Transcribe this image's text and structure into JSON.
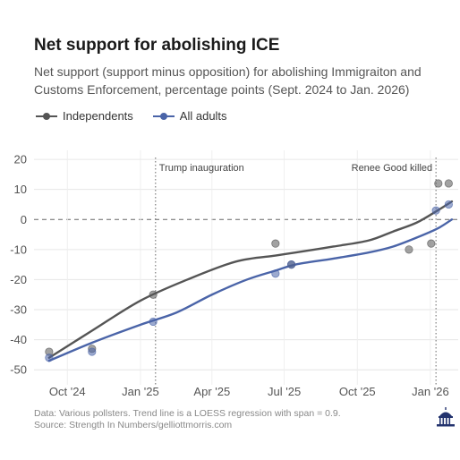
{
  "header": {
    "title": "Net support for abolishing ICE",
    "subtitle": "Net support (support minus opposition) for abolishing Immigraiton and Customs Enforcement, percentage points (Sept. 2024 to Jan. 2026)"
  },
  "footer": {
    "line1": "Data: Various pollsters. Trend line is a LOESS regression with span = 0.9.",
    "line2": "Source: Strength In Numbers/gelliottmorris.com"
  },
  "logo": {
    "icon": "capitol-dome-icon"
  },
  "chart_data": {
    "type": "scatter",
    "title": "Net support for abolishing ICE",
    "xlabel": "",
    "ylabel": "",
    "xlim": [
      "2024-08-20",
      "2026-02-05"
    ],
    "ylim": [
      -55,
      23
    ],
    "yticks": [
      20,
      10,
      0,
      -10,
      -20,
      -30,
      -40,
      -50
    ],
    "xticks": [
      {
        "date": "2024-10-01",
        "label": "Oct '24"
      },
      {
        "date": "2025-01-01",
        "label": "Jan '25"
      },
      {
        "date": "2025-04-01",
        "label": "Apr '25"
      },
      {
        "date": "2025-07-01",
        "label": "Jul '25"
      },
      {
        "date": "2025-10-01",
        "label": "Oct '25"
      },
      {
        "date": "2026-01-01",
        "label": "Jan '26"
      }
    ],
    "grid": true,
    "legend_position": "top-left",
    "annotations": [
      {
        "date": "2025-01-20",
        "label": "Trump inauguration"
      },
      {
        "date": "2026-01-08",
        "label": "Renee Good killed"
      }
    ],
    "series": [
      {
        "name": "Independents",
        "color": "#555555",
        "points": [
          {
            "x": "2024-09-08",
            "y": -44
          },
          {
            "x": "2024-11-01",
            "y": -43
          },
          {
            "x": "2025-01-17",
            "y": -25
          },
          {
            "x": "2025-06-20",
            "y": -8
          },
          {
            "x": "2025-07-10",
            "y": -15
          },
          {
            "x": "2025-12-05",
            "y": -10
          },
          {
            "x": "2026-01-02",
            "y": -8
          },
          {
            "x": "2026-01-11",
            "y": 12
          },
          {
            "x": "2026-01-24",
            "y": 12
          }
        ],
        "trend": [
          {
            "x": "2024-09-08",
            "y": -46
          },
          {
            "x": "2024-11-01",
            "y": -37
          },
          {
            "x": "2025-01-01",
            "y": -27
          },
          {
            "x": "2025-03-01",
            "y": -20
          },
          {
            "x": "2025-05-01",
            "y": -14
          },
          {
            "x": "2025-06-20",
            "y": -12
          },
          {
            "x": "2025-07-15",
            "y": -11
          },
          {
            "x": "2025-09-01",
            "y": -9
          },
          {
            "x": "2025-10-15",
            "y": -7
          },
          {
            "x": "2025-11-15",
            "y": -4
          },
          {
            "x": "2025-12-15",
            "y": -1
          },
          {
            "x": "2026-01-10",
            "y": 3
          },
          {
            "x": "2026-01-28",
            "y": 6
          }
        ]
      },
      {
        "name": "All adults",
        "color": "#4a64a8",
        "points": [
          {
            "x": "2024-09-08",
            "y": -46
          },
          {
            "x": "2024-11-01",
            "y": -44
          },
          {
            "x": "2025-01-17",
            "y": -34
          },
          {
            "x": "2025-06-20",
            "y": -18
          },
          {
            "x": "2025-07-10",
            "y": -15
          },
          {
            "x": "2026-01-08",
            "y": 3
          },
          {
            "x": "2026-01-24",
            "y": 5
          }
        ],
        "trend": [
          {
            "x": "2024-09-08",
            "y": -47
          },
          {
            "x": "2024-11-01",
            "y": -41
          },
          {
            "x": "2025-01-01",
            "y": -35
          },
          {
            "x": "2025-02-15",
            "y": -31
          },
          {
            "x": "2025-04-01",
            "y": -25
          },
          {
            "x": "2025-05-15",
            "y": -20
          },
          {
            "x": "2025-06-20",
            "y": -17
          },
          {
            "x": "2025-07-15",
            "y": -15
          },
          {
            "x": "2025-09-01",
            "y": -13
          },
          {
            "x": "2025-10-15",
            "y": -11
          },
          {
            "x": "2025-11-15",
            "y": -9
          },
          {
            "x": "2025-12-15",
            "y": -6
          },
          {
            "x": "2026-01-10",
            "y": -3
          },
          {
            "x": "2026-01-28",
            "y": 0
          }
        ]
      }
    ]
  }
}
